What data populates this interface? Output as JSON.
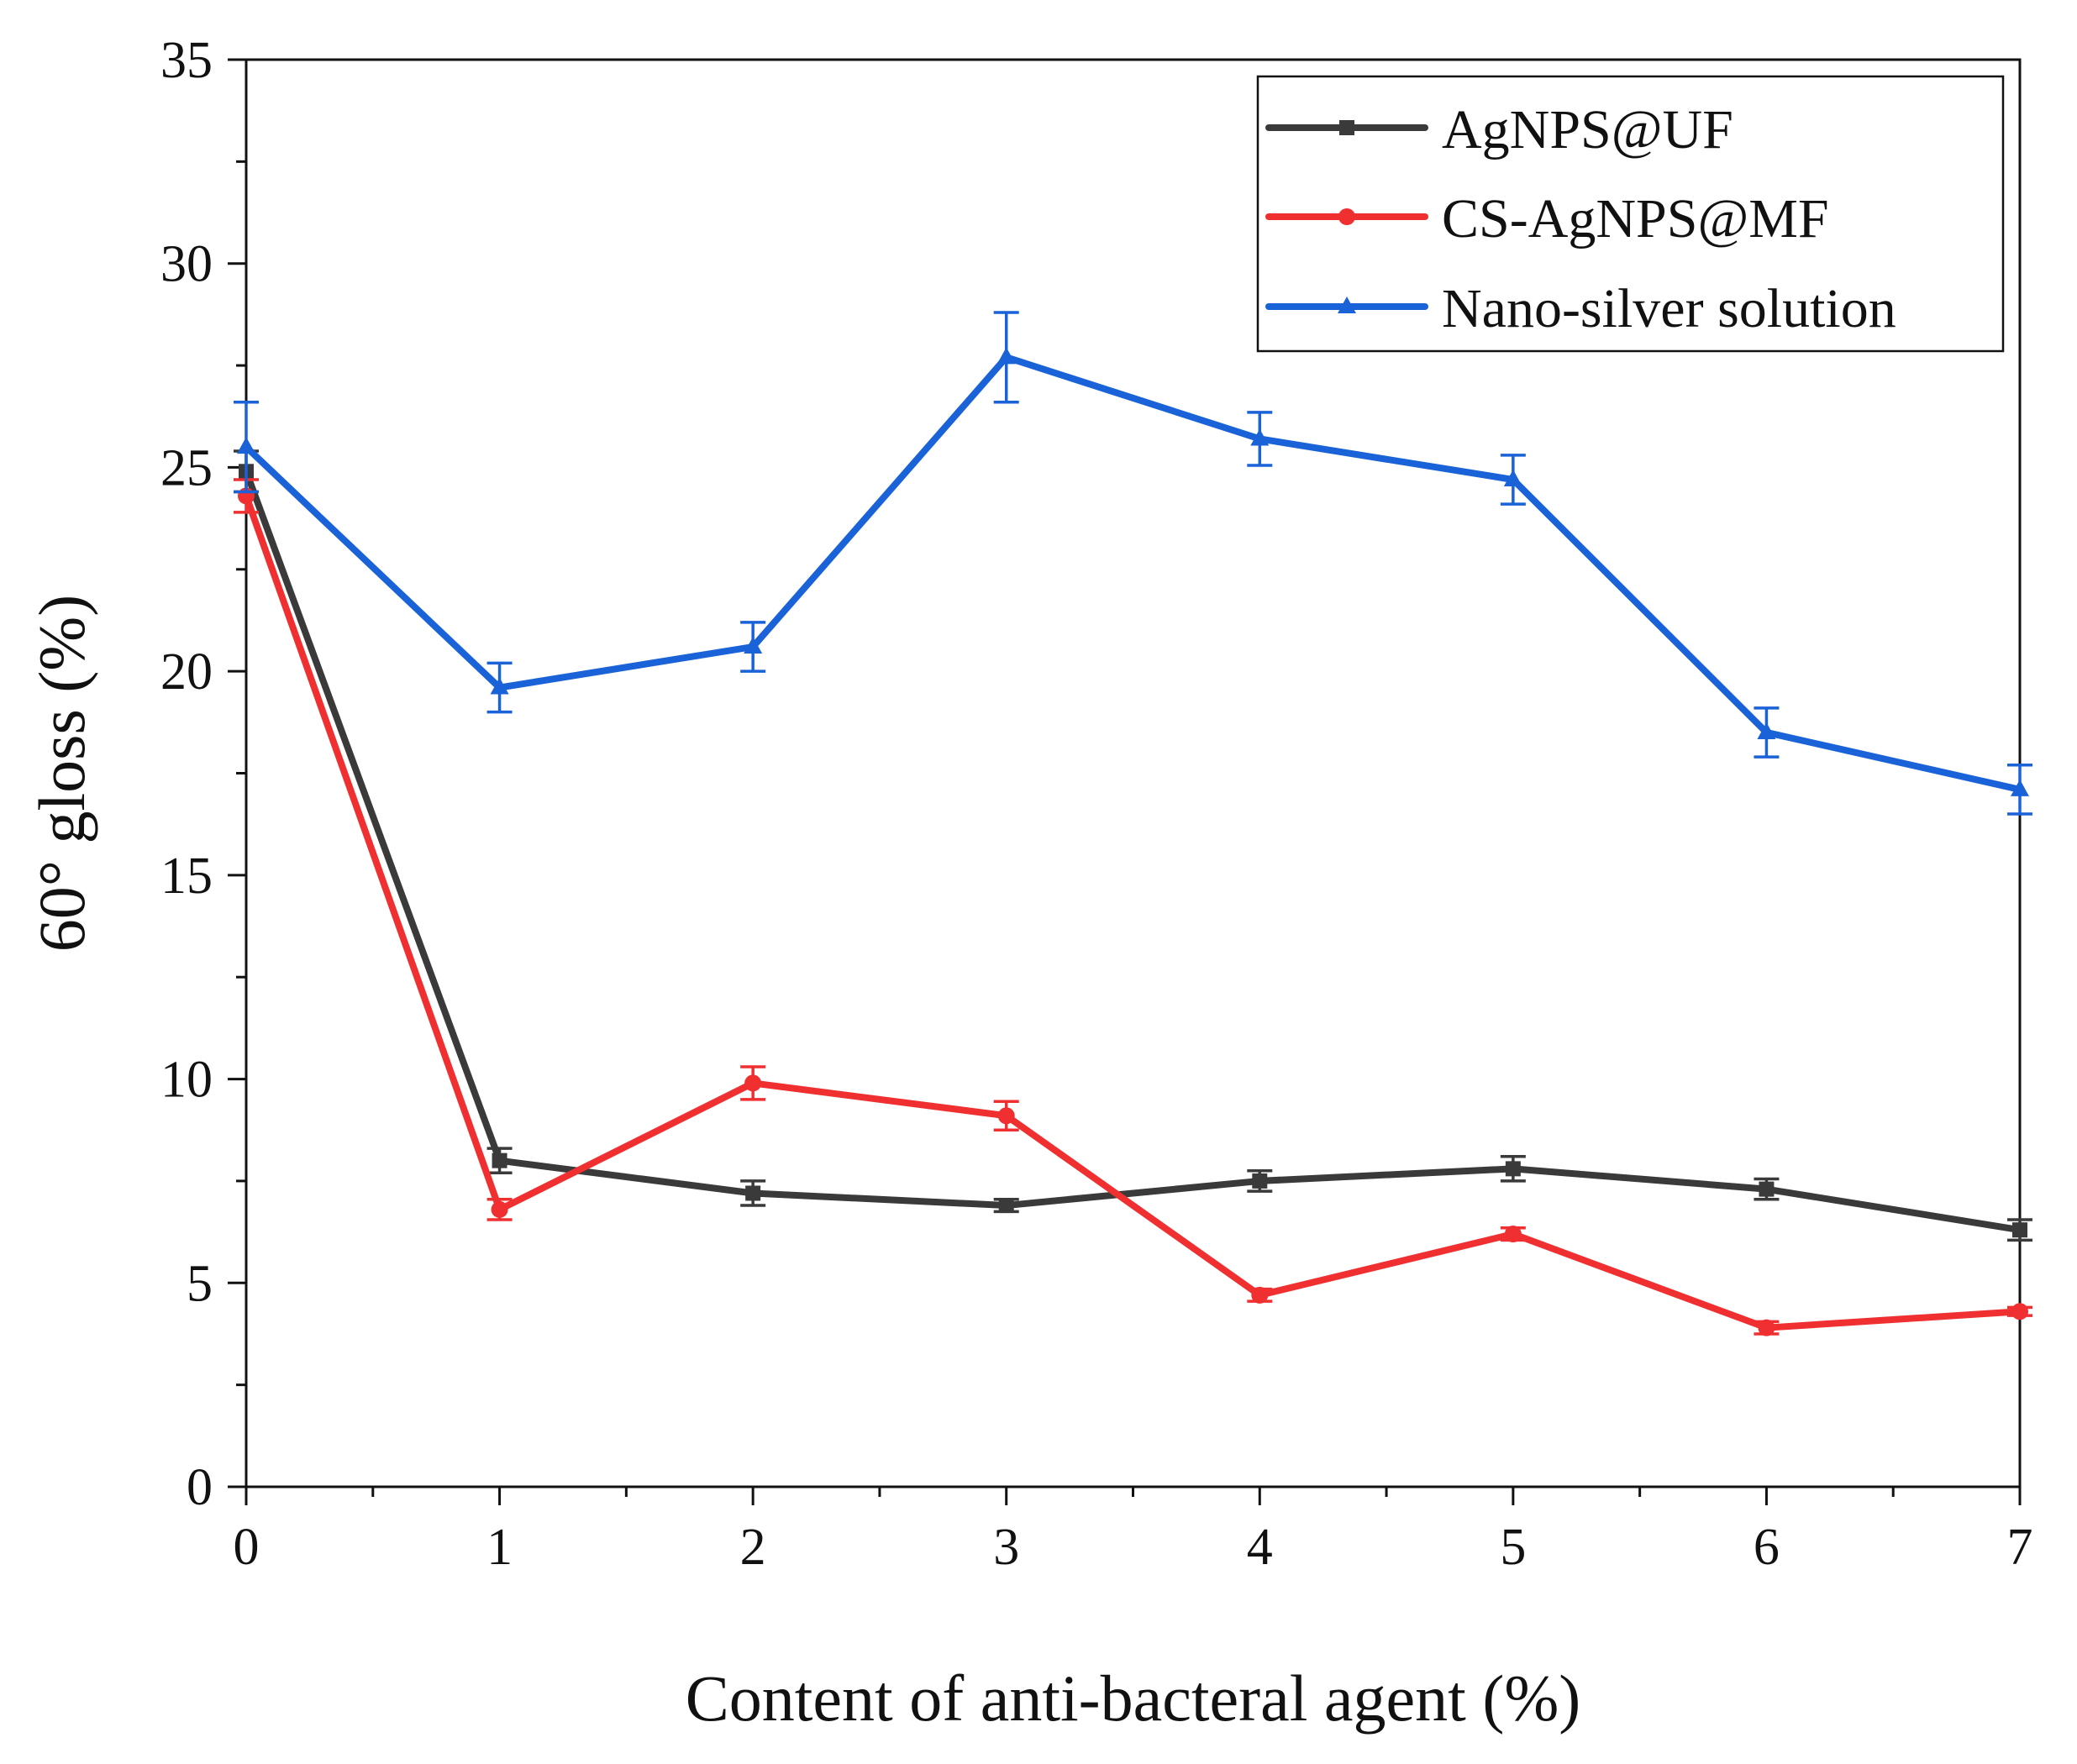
{
  "chart_data": {
    "type": "line",
    "title": "",
    "xlabel": "Content of anti-bacteral agent (%)",
    "ylabel": "60° gloss (%)",
    "x": [
      0,
      1,
      2,
      3,
      4,
      5,
      6,
      7
    ],
    "xlim": [
      0,
      7
    ],
    "ylim": [
      0,
      35
    ],
    "x_ticks": [
      0,
      1,
      2,
      3,
      4,
      5,
      6,
      7
    ],
    "y_ticks": [
      0,
      5,
      10,
      15,
      20,
      25,
      30,
      35
    ],
    "x_tick_labels": [
      "0",
      "1",
      "2",
      "3",
      "4",
      "5",
      "6",
      "7"
    ],
    "y_tick_labels": [
      "0",
      "5",
      "10",
      "15",
      "20",
      "25",
      "30",
      "35"
    ],
    "grid": false,
    "legend_position": "top-right",
    "series": [
      {
        "name": "AgNPS@UF",
        "color": "#3a3a3a",
        "marker": "square",
        "values": [
          24.9,
          8.0,
          7.2,
          6.9,
          7.5,
          7.8,
          7.3,
          6.3
        ],
        "errors": [
          0.5,
          0.3,
          0.3,
          0.15,
          0.25,
          0.3,
          0.25,
          0.25
        ]
      },
      {
        "name": "CS-AgNPS@MF",
        "color": "#f03030",
        "marker": "circle",
        "values": [
          24.3,
          6.8,
          9.9,
          9.1,
          4.7,
          6.2,
          3.9,
          4.3
        ],
        "errors": [
          0.4,
          0.25,
          0.4,
          0.35,
          0.15,
          0.15,
          0.15,
          0.1
        ]
      },
      {
        "name": "Nano-silver solution",
        "color": "#1a62d8",
        "marker": "triangle",
        "values": [
          25.5,
          19.6,
          20.6,
          27.7,
          25.7,
          24.7,
          18.5,
          17.1
        ],
        "errors": [
          1.1,
          0.6,
          0.6,
          1.1,
          0.65,
          0.6,
          0.6,
          0.6
        ]
      }
    ]
  }
}
